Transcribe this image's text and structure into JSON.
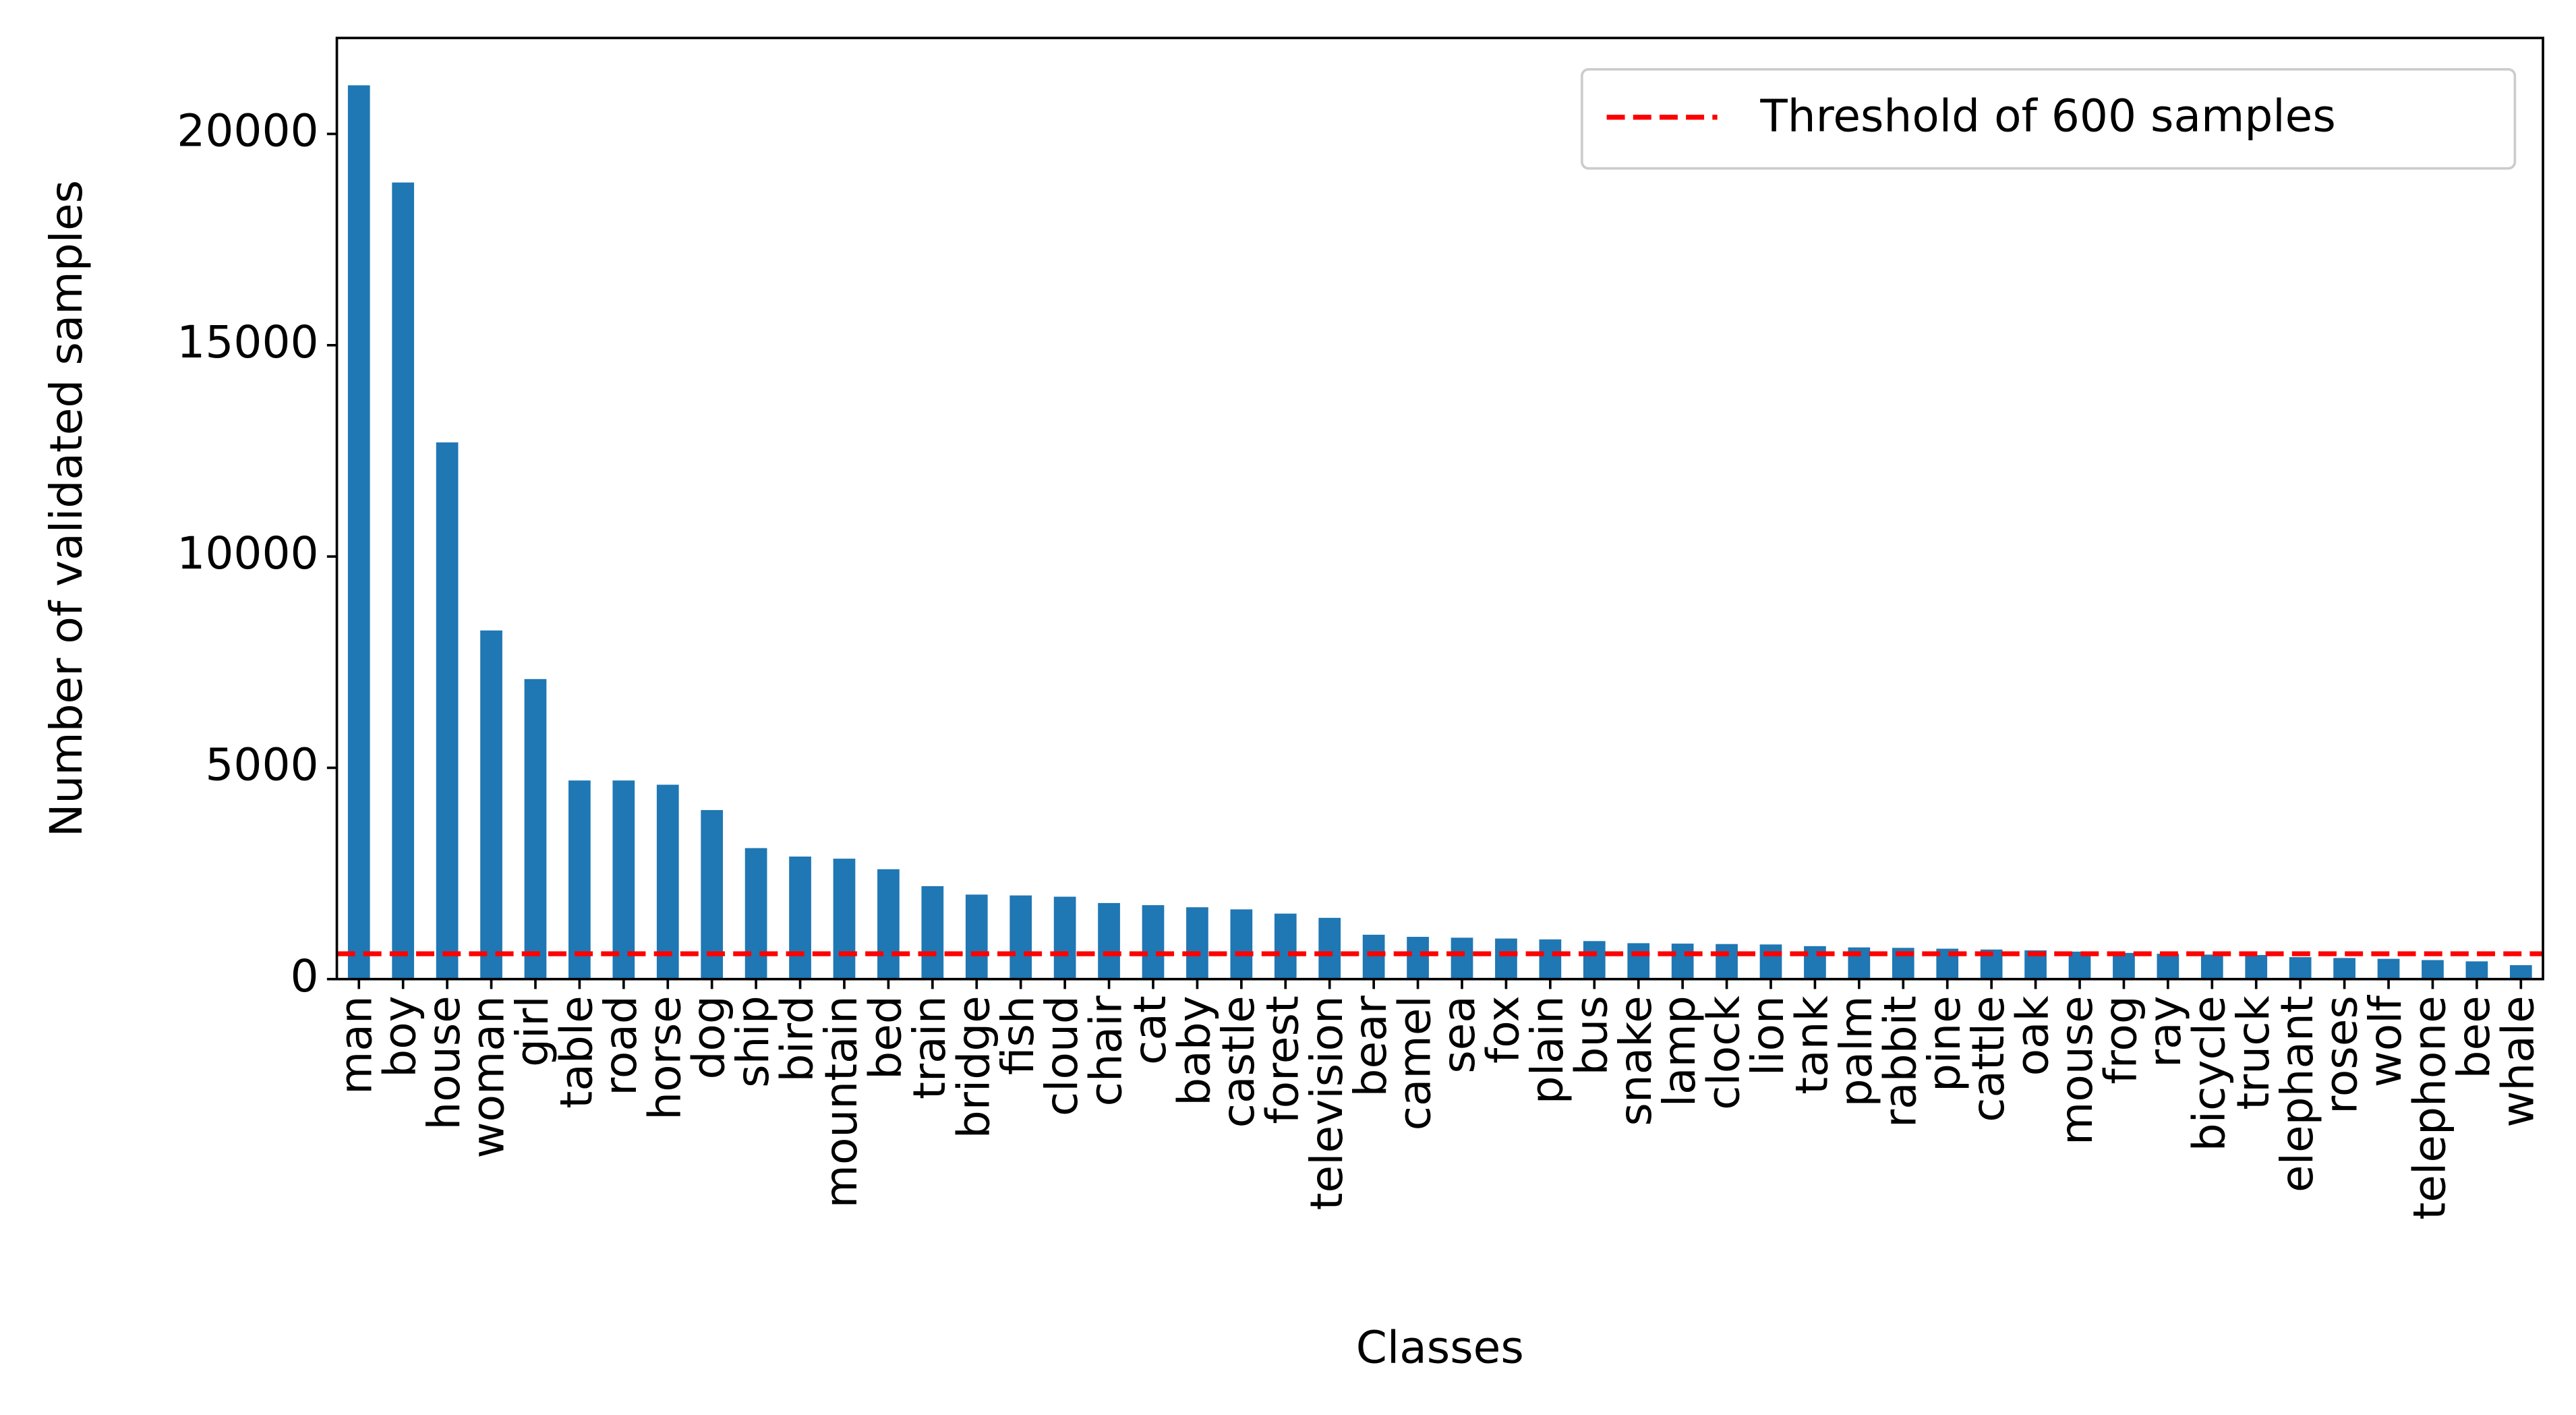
{
  "chart_data": {
    "type": "bar",
    "xlabel": "Classes",
    "ylabel": "Number of validated samples",
    "categories": [
      "man",
      "boy",
      "house",
      "woman",
      "girl",
      "table",
      "road",
      "horse",
      "dog",
      "ship",
      "bird",
      "mountain",
      "bed",
      "train",
      "bridge",
      "fish",
      "cloud",
      "chair",
      "cat",
      "baby",
      "castle",
      "forest",
      "television",
      "bear",
      "camel",
      "sea",
      "fox",
      "plain",
      "bus",
      "snake",
      "lamp",
      "clock",
      "lion",
      "tank",
      "palm",
      "rabbit",
      "pine",
      "cattle",
      "oak",
      "mouse",
      "frog",
      "ray",
      "bicycle",
      "truck",
      "elephant",
      "roses",
      "wolf",
      "telephone",
      "bee",
      "whale"
    ],
    "values": [
      21150,
      18850,
      12700,
      8250,
      7100,
      4700,
      4700,
      4600,
      4000,
      3100,
      2900,
      2850,
      2600,
      2200,
      2000,
      1980,
      1950,
      1800,
      1750,
      1700,
      1650,
      1550,
      1450,
      1050,
      1000,
      980,
      960,
      940,
      900,
      850,
      840,
      830,
      820,
      780,
      750,
      740,
      720,
      700,
      680,
      650,
      620,
      600,
      580,
      570,
      520,
      500,
      480,
      450,
      420,
      330
    ],
    "color": "#1f77b4",
    "ylim": [
      0,
      22270
    ],
    "yticks": [
      0,
      5000,
      10000,
      15000,
      20000
    ],
    "threshold": {
      "value": 600,
      "label": "Threshold of 600 samples",
      "color": "#ff0000"
    },
    "legend": "upper right"
  }
}
